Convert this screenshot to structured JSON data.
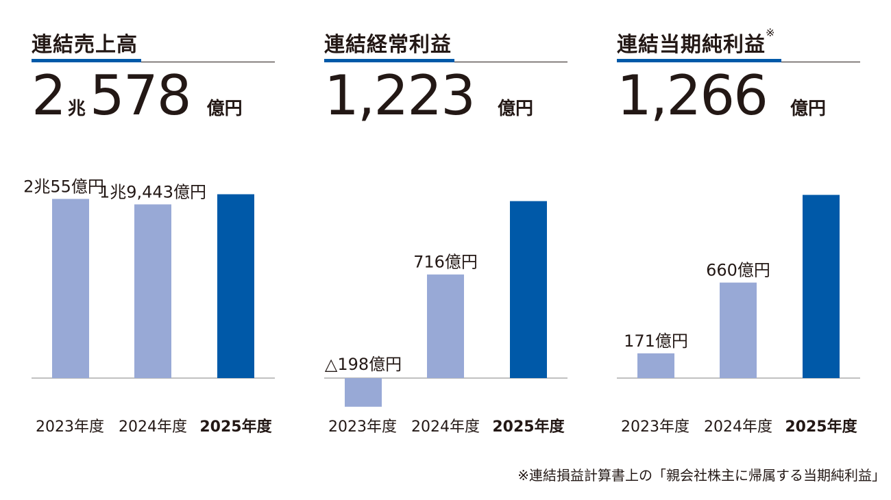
{
  "colors": {
    "prior_year_bar": "#98a9d6",
    "current_year_bar": "#0059a8",
    "baseline": "#9a9a9a"
  },
  "panels": [
    {
      "title": "連結売上高",
      "title_mark": "",
      "headline": {
        "big1": "2",
        "small": "兆",
        "big2": "578",
        "unit": "億円"
      }
    },
    {
      "title": "連結経常利益",
      "title_mark": "",
      "headline": {
        "big1": "1,223",
        "small": "",
        "big2": "",
        "unit": "億円"
      }
    },
    {
      "title": "連結当期純利益",
      "title_mark": "※",
      "headline": {
        "big1": "1,266",
        "small": "",
        "big2": "",
        "unit": "億円"
      }
    }
  ],
  "chart_data": [
    {
      "type": "bar",
      "categories": [
        "2023年度",
        "2024年度",
        "2025年度"
      ],
      "values": [
        20055,
        19443,
        20578
      ],
      "data_labels": [
        "2兆55億円",
        "1兆9,443億円",
        ""
      ],
      "unit": "億円",
      "ylim": [
        0,
        23000
      ]
    },
    {
      "type": "bar",
      "categories": [
        "2023年度",
        "2024年度",
        "2025年度"
      ],
      "values": [
        -198,
        716,
        1223
      ],
      "data_labels": [
        "△198億円",
        "716億円",
        ""
      ],
      "unit": "億円",
      "ylim": [
        -250,
        1420
      ]
    },
    {
      "type": "bar",
      "categories": [
        "2023年度",
        "2024年度",
        "2025年度"
      ],
      "values": [
        171,
        660,
        1266
      ],
      "data_labels": [
        "171億円",
        "660億円",
        ""
      ],
      "unit": "億円",
      "ylim": [
        0,
        1420
      ]
    }
  ],
  "footnote": "※連結損益計算書上の「親会社株主に帰属する当期純利益」"
}
